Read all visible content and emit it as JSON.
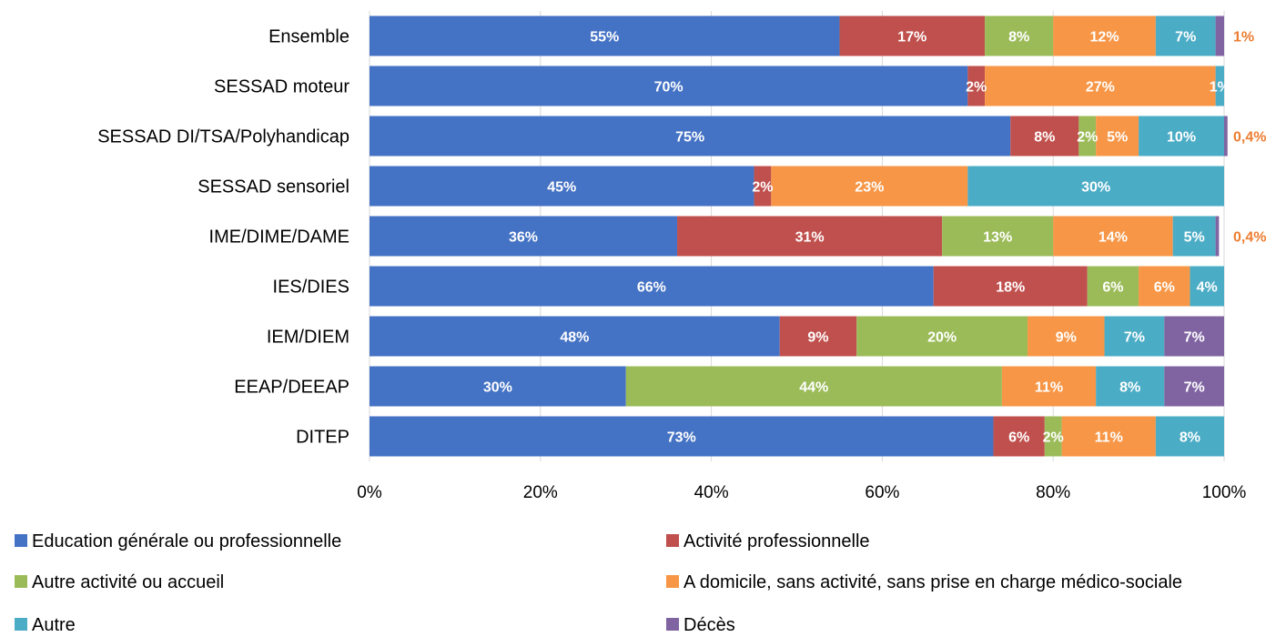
{
  "chart_data": {
    "type": "bar",
    "orientation": "horizontal",
    "stacked": "percent",
    "categories": [
      "Ensemble",
      "SESSAD moteur",
      "SESSAD DI/TSA/Polyhandicap",
      "SESSAD sensoriel",
      "IME/DIME/DAME",
      "IES/DIES",
      "IEM/DIEM",
      "EEAP/DEEAP",
      "DITEP"
    ],
    "xticks": [
      "0%",
      "20%",
      "40%",
      "60%",
      "80%",
      "100%"
    ],
    "xlim": [
      0,
      100
    ],
    "grid": true,
    "legend_position": "bottom",
    "series": [
      {
        "name": "Education générale ou professionnelle",
        "color": "#4472C4",
        "values": [
          55,
          70,
          75,
          45,
          36,
          66,
          48,
          30,
          73
        ],
        "labels": [
          "55%",
          "70%",
          "75%",
          "45%",
          "36%",
          "66%",
          "48%",
          "30%",
          "73%"
        ]
      },
      {
        "name": "Activité professionnelle",
        "color": "#C0504D",
        "values": [
          17,
          2,
          8,
          2,
          31,
          18,
          9,
          0,
          6
        ],
        "labels": [
          "17%",
          "2%",
          "8%",
          "2%",
          "31%",
          "18%",
          "9%",
          "",
          "6%"
        ]
      },
      {
        "name": "Autre activité ou accueil",
        "color": "#9BBB59",
        "values": [
          8,
          0,
          2,
          0,
          13,
          6,
          20,
          44,
          2
        ],
        "labels": [
          "8%",
          "",
          "2%",
          "",
          "13%",
          "6%",
          "20%",
          "44%",
          "2%"
        ]
      },
      {
        "name": "A domicile, sans activité, sans prise en charge médico-sociale",
        "color": "#F79646",
        "values": [
          12,
          27,
          5,
          23,
          14,
          6,
          9,
          11,
          11
        ],
        "labels": [
          "12%",
          "27%",
          "5%",
          "23%",
          "14%",
          "6%",
          "9%",
          "11%",
          "11%"
        ]
      },
      {
        "name": "Autre",
        "color": "#4BACC6",
        "values": [
          7,
          1,
          10,
          30,
          5,
          4,
          7,
          8,
          8
        ],
        "labels": [
          "7%",
          "1%",
          "10%",
          "30%",
          "5%",
          "4%",
          "7%",
          "8%",
          "8%"
        ]
      },
      {
        "name": "Décès",
        "color": "#8064A2",
        "values": [
          1,
          0,
          0.4,
          0,
          0.4,
          0,
          7,
          7,
          0
        ],
        "labels": [
          "",
          "",
          "",
          "",
          "",
          "",
          "7%",
          "7%",
          ""
        ]
      }
    ],
    "outside_labels": [
      {
        "category": "Ensemble",
        "text": "1%"
      },
      {
        "category": "SESSAD DI/TSA/Polyhandicap",
        "text": "0,4%"
      },
      {
        "category": "IME/DIME/DAME",
        "text": "0,4%"
      }
    ]
  }
}
